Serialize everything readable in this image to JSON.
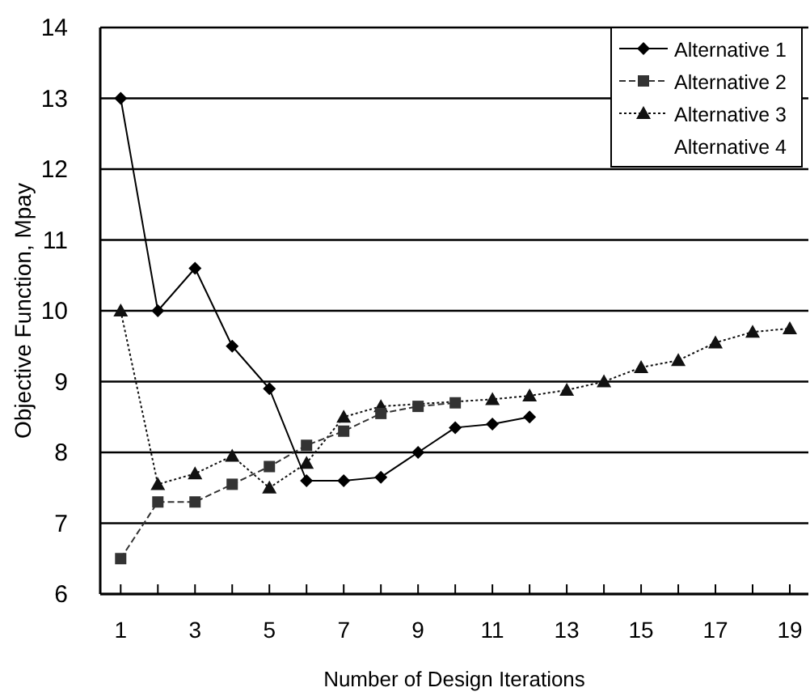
{
  "chart_data": {
    "type": "line",
    "xlabel": "Number of Design Iterations",
    "ylabel": "Objective Function, Mpay",
    "x": [
      1,
      2,
      3,
      4,
      5,
      6,
      7,
      8,
      9,
      10,
      11,
      12,
      13,
      14,
      15,
      16,
      17,
      18,
      19
    ],
    "series": [
      {
        "name": "Alternative 1",
        "color": "#000000",
        "marker": "diamond",
        "line_style": "solid",
        "values": [
          13,
          10,
          10.6,
          9.5,
          8.9,
          7.6,
          7.6,
          7.65,
          8.0,
          8.35,
          8.4,
          8.5,
          null,
          null,
          null,
          null,
          null,
          null,
          null
        ]
      },
      {
        "name": "Alternative 2",
        "color": "#333333",
        "marker": "square",
        "line_style": "dashed",
        "values": [
          6.5,
          7.3,
          7.3,
          7.55,
          7.8,
          8.1,
          8.3,
          8.55,
          8.65,
          8.7,
          null,
          null,
          null,
          null,
          null,
          null,
          null,
          null,
          null
        ]
      },
      {
        "name": "Alternative 3",
        "color": "#111111",
        "marker": "triangle",
        "line_style": "dotted",
        "values": [
          10,
          7.55,
          7.7,
          7.95,
          7.5,
          7.85,
          8.5,
          8.65,
          null,
          null,
          8.75,
          8.8,
          8.88,
          9.0,
          9.2,
          9.3,
          9.55,
          9.7,
          9.75
        ]
      },
      {
        "name": "Alternative 4",
        "marker": "none",
        "line_style": "solid",
        "values": [
          null,
          null,
          null,
          null,
          null,
          null,
          null,
          null,
          null,
          null,
          null,
          null,
          null,
          null,
          null,
          null,
          null,
          null,
          null
        ]
      }
    ],
    "xlim": [
      0.45,
      19.5
    ],
    "xticks": [
      1,
      {
        "value": 2,
        "label": null
      },
      3,
      {
        "value": 4,
        "label": null
      },
      5,
      {
        "value": 6,
        "label": null
      },
      7,
      {
        "value": 8,
        "label": null
      },
      9,
      {
        "value": 10,
        "label": null
      },
      11,
      {
        "value": 12,
        "label": null
      },
      13,
      {
        "value": 14,
        "label": null
      },
      15,
      {
        "value": 16,
        "label": null
      },
      17,
      {
        "value": 18,
        "label": null
      },
      19
    ],
    "ylim": [
      6,
      14
    ],
    "yticks": [
      6,
      7,
      8,
      9,
      10,
      11,
      12,
      13,
      14
    ],
    "grid": "y",
    "legend": "top right"
  }
}
